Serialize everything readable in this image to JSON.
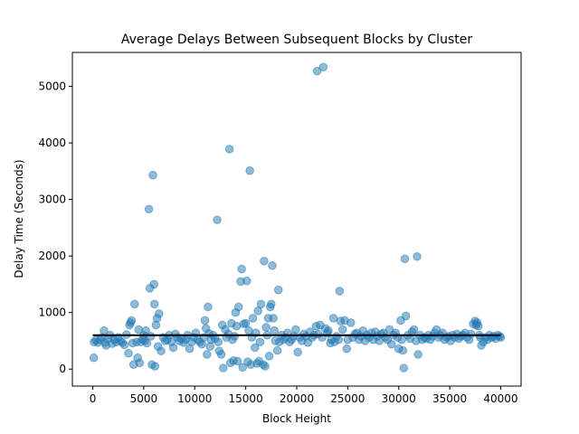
{
  "chart_data": {
    "type": "scatter",
    "title": "Average Delays Between Subsequent Blocks by Cluster",
    "xlabel": "Block Height",
    "ylabel": "Delay Time (Seconds)",
    "xlim": [
      -2000,
      42000
    ],
    "ylim": [
      -300,
      5600
    ],
    "xticks": [
      0,
      5000,
      10000,
      15000,
      20000,
      25000,
      30000,
      35000,
      40000
    ],
    "yticks": [
      0,
      1000,
      2000,
      3000,
      4000,
      5000
    ],
    "grid": false,
    "legend": "none",
    "point_color": "#1f77b4",
    "point_alpha": 0.5,
    "reference_line": {
      "y": 600,
      "x_range": [
        0,
        40000
      ],
      "color": "#000000"
    },
    "points": [
      [
        100,
        200
      ],
      [
        120,
        480
      ],
      [
        300,
        510
      ],
      [
        500,
        470
      ],
      [
        700,
        520
      ],
      [
        900,
        560
      ],
      [
        1100,
        680
      ],
      [
        1200,
        470
      ],
      [
        1300,
        420
      ],
      [
        1500,
        540
      ],
      [
        1700,
        600
      ],
      [
        1900,
        450
      ],
      [
        2100,
        520
      ],
      [
        2300,
        480
      ],
      [
        2500,
        560
      ],
      [
        2700,
        500
      ],
      [
        2900,
        470
      ],
      [
        3100,
        430
      ],
      [
        3300,
        610
      ],
      [
        3500,
        280
      ],
      [
        3600,
        780
      ],
      [
        3700,
        820
      ],
      [
        3800,
        860
      ],
      [
        3900,
        460
      ],
      [
        4000,
        80
      ],
      [
        4100,
        1150
      ],
      [
        4300,
        480
      ],
      [
        4400,
        200
      ],
      [
        4500,
        700
      ],
      [
        4600,
        110
      ],
      [
        4700,
        480
      ],
      [
        4900,
        530
      ],
      [
        5000,
        600
      ],
      [
        5100,
        500
      ],
      [
        5200,
        680
      ],
      [
        5300,
        460
      ],
      [
        5500,
        2830
      ],
      [
        5600,
        1430
      ],
      [
        5700,
        580
      ],
      [
        5800,
        80
      ],
      [
        5900,
        3430
      ],
      [
        6000,
        1500
      ],
      [
        6050,
        1150
      ],
      [
        6100,
        50
      ],
      [
        6200,
        780
      ],
      [
        6300,
        900
      ],
      [
        6400,
        400
      ],
      [
        6500,
        980
      ],
      [
        6700,
        320
      ],
      [
        6900,
        560
      ],
      [
        7100,
        500
      ],
      [
        7300,
        520
      ],
      [
        7500,
        600
      ],
      [
        7700,
        480
      ],
      [
        7900,
        380
      ],
      [
        8100,
        620
      ],
      [
        8300,
        560
      ],
      [
        8500,
        500
      ],
      [
        8700,
        540
      ],
      [
        8900,
        470
      ],
      [
        9100,
        520
      ],
      [
        9300,
        600
      ],
      [
        9500,
        360
      ],
      [
        9700,
        480
      ],
      [
        9900,
        560
      ],
      [
        10100,
        640
      ],
      [
        10300,
        520
      ],
      [
        10500,
        480
      ],
      [
        10700,
        440
      ],
      [
        10900,
        560
      ],
      [
        11000,
        860
      ],
      [
        11100,
        720
      ],
      [
        11200,
        260
      ],
      [
        11300,
        1100
      ],
      [
        11400,
        630
      ],
      [
        11500,
        400
      ],
      [
        11600,
        520
      ],
      [
        11800,
        600
      ],
      [
        12000,
        540
      ],
      [
        12200,
        2640
      ],
      [
        12300,
        480
      ],
      [
        12400,
        320
      ],
      [
        12600,
        260
      ],
      [
        12700,
        780
      ],
      [
        12800,
        20
      ],
      [
        13000,
        700
      ],
      [
        13100,
        560
      ],
      [
        13300,
        620
      ],
      [
        13400,
        3890
      ],
      [
        13500,
        110
      ],
      [
        13600,
        810
      ],
      [
        13700,
        520
      ],
      [
        13800,
        150
      ],
      [
        13900,
        580
      ],
      [
        14000,
        1000
      ],
      [
        14100,
        760
      ],
      [
        14200,
        140
      ],
      [
        14300,
        1100
      ],
      [
        14500,
        1550
      ],
      [
        14600,
        1770
      ],
      [
        14700,
        30
      ],
      [
        14800,
        800
      ],
      [
        15000,
        810
      ],
      [
        15100,
        1560
      ],
      [
        15200,
        130
      ],
      [
        15300,
        680
      ],
      [
        15400,
        3510
      ],
      [
        15500,
        80
      ],
      [
        15600,
        560
      ],
      [
        15700,
        900
      ],
      [
        15900,
        380
      ],
      [
        16000,
        640
      ],
      [
        16100,
        100
      ],
      [
        16200,
        1030
      ],
      [
        16300,
        140
      ],
      [
        16400,
        480
      ],
      [
        16500,
        1150
      ],
      [
        16700,
        80
      ],
      [
        16800,
        1910
      ],
      [
        16900,
        50
      ],
      [
        17000,
        740
      ],
      [
        17100,
        600
      ],
      [
        17200,
        900
      ],
      [
        17300,
        230
      ],
      [
        17400,
        1100
      ],
      [
        17500,
        1150
      ],
      [
        17600,
        1830
      ],
      [
        17700,
        900
      ],
      [
        17800,
        680
      ],
      [
        17900,
        500
      ],
      [
        18100,
        330
      ],
      [
        18200,
        1400
      ],
      [
        18300,
        480
      ],
      [
        18500,
        600
      ],
      [
        18700,
        520
      ],
      [
        18900,
        560
      ],
      [
        19100,
        640
      ],
      [
        19300,
        480
      ],
      [
        19500,
        520
      ],
      [
        19700,
        580
      ],
      [
        19900,
        700
      ],
      [
        20100,
        300
      ],
      [
        20300,
        560
      ],
      [
        20500,
        500
      ],
      [
        20700,
        620
      ],
      [
        20900,
        580
      ],
      [
        21100,
        470
      ],
      [
        21300,
        660
      ],
      [
        21500,
        560
      ],
      [
        21700,
        600
      ],
      [
        21900,
        760
      ],
      [
        22000,
        5270
      ],
      [
        22100,
        620
      ],
      [
        22300,
        780
      ],
      [
        22500,
        560
      ],
      [
        22600,
        5340
      ],
      [
        22800,
        720
      ],
      [
        23000,
        640
      ],
      [
        23100,
        680
      ],
      [
        23300,
        460
      ],
      [
        23400,
        520
      ],
      [
        23600,
        900
      ],
      [
        23700,
        480
      ],
      [
        23900,
        580
      ],
      [
        24100,
        520
      ],
      [
        24200,
        1380
      ],
      [
        24300,
        850
      ],
      [
        24500,
        700
      ],
      [
        24700,
        860
      ],
      [
        24900,
        360
      ],
      [
        25000,
        520
      ],
      [
        25300,
        820
      ],
      [
        25500,
        560
      ],
      [
        25700,
        620
      ],
      [
        25900,
        640
      ],
      [
        26100,
        520
      ],
      [
        26300,
        580
      ],
      [
        26500,
        680
      ],
      [
        26700,
        500
      ],
      [
        26900,
        600
      ],
      [
        27100,
        560
      ],
      [
        27300,
        640
      ],
      [
        27500,
        520
      ],
      [
        27700,
        660
      ],
      [
        27900,
        580
      ],
      [
        28100,
        500
      ],
      [
        28300,
        620
      ],
      [
        28500,
        640
      ],
      [
        28700,
        560
      ],
      [
        28900,
        520
      ],
      [
        29100,
        700
      ],
      [
        29300,
        440
      ],
      [
        29500,
        600
      ],
      [
        29700,
        640
      ],
      [
        29900,
        560
      ],
      [
        30000,
        360
      ],
      [
        30200,
        860
      ],
      [
        30300,
        520
      ],
      [
        30400,
        330
      ],
      [
        30500,
        20
      ],
      [
        30600,
        1950
      ],
      [
        30700,
        940
      ],
      [
        30900,
        600
      ],
      [
        31100,
        540
      ],
      [
        31300,
        660
      ],
      [
        31500,
        700
      ],
      [
        31700,
        500
      ],
      [
        31800,
        1990
      ],
      [
        31900,
        260
      ],
      [
        32100,
        600
      ],
      [
        32300,
        520
      ],
      [
        32500,
        560
      ],
      [
        32700,
        540
      ],
      [
        32900,
        600
      ],
      [
        33100,
        520
      ],
      [
        33300,
        580
      ],
      [
        33500,
        640
      ],
      [
        33700,
        700
      ],
      [
        33900,
        560
      ],
      [
        34100,
        600
      ],
      [
        34300,
        640
      ],
      [
        34500,
        520
      ],
      [
        34700,
        560
      ],
      [
        34900,
        580
      ],
      [
        35100,
        500
      ],
      [
        35300,
        600
      ],
      [
        35500,
        560
      ],
      [
        35700,
        620
      ],
      [
        35900,
        540
      ],
      [
        36100,
        580
      ],
      [
        36300,
        600
      ],
      [
        36500,
        640
      ],
      [
        36700,
        560
      ],
      [
        36900,
        520
      ],
      [
        37100,
        620
      ],
      [
        37300,
        800
      ],
      [
        37500,
        850
      ],
      [
        37600,
        780
      ],
      [
        37700,
        820
      ],
      [
        37800,
        760
      ],
      [
        37900,
        600
      ],
      [
        38000,
        560
      ],
      [
        38100,
        420
      ],
      [
        38300,
        480
      ],
      [
        38500,
        560
      ],
      [
        38700,
        520
      ],
      [
        38900,
        600
      ],
      [
        39100,
        560
      ],
      [
        39300,
        580
      ],
      [
        39500,
        540
      ],
      [
        39700,
        600
      ],
      [
        39900,
        580
      ],
      [
        40000,
        560
      ]
    ]
  }
}
